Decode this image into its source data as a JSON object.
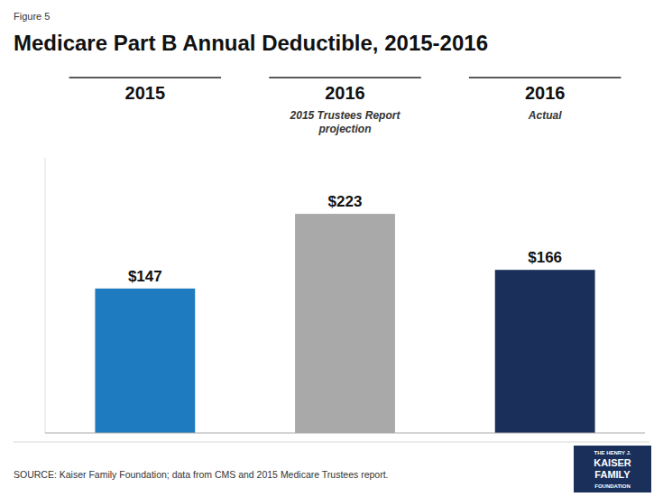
{
  "chart_data": {
    "type": "bar",
    "figure_label": "Figure 5",
    "title": "Medicare Part B Annual Deductible, 2015-2016",
    "categories": [
      "2015",
      "2016",
      "2016"
    ],
    "sublabels": [
      null,
      "2015 Trustees Report\nprojection",
      "Actual"
    ],
    "values": [
      147,
      223,
      166
    ],
    "value_labels": [
      "$147",
      "$223",
      "$166"
    ],
    "colors": [
      "#1f7bbf",
      "#a9a9a9",
      "#1a2f5a"
    ],
    "data_labels": true,
    "ylim": [
      0,
      280
    ],
    "tick_labels": false,
    "grid": false,
    "source": "SOURCE: Kaiser Family Foundation; data from CMS and 2015 Medicare Trustees report.",
    "logo_text": [
      "THE HENRY J.",
      "KAISER",
      "FAMILY",
      "FOUNDATION"
    ]
  }
}
